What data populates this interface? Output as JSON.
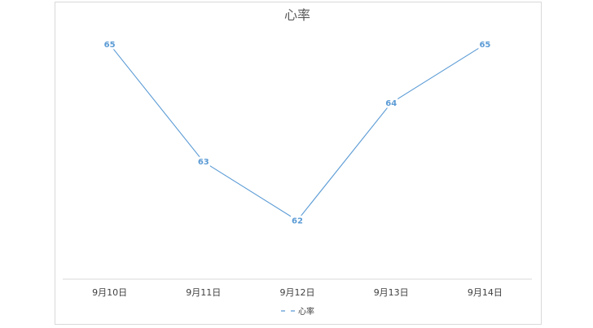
{
  "chart_data": {
    "type": "line",
    "title": "心率",
    "categories": [
      "9月10日",
      "9月11日",
      "9月12日",
      "9月13日",
      "9月14日"
    ],
    "series": [
      {
        "name": "心率",
        "values": [
          65,
          63,
          62,
          64,
          65
        ],
        "color": "#5b9bd5"
      }
    ],
    "ylim": [
      61,
      65.2
    ],
    "grid": false,
    "data_labels": true,
    "legend": "bottom",
    "xlabel": "",
    "ylabel": ""
  }
}
